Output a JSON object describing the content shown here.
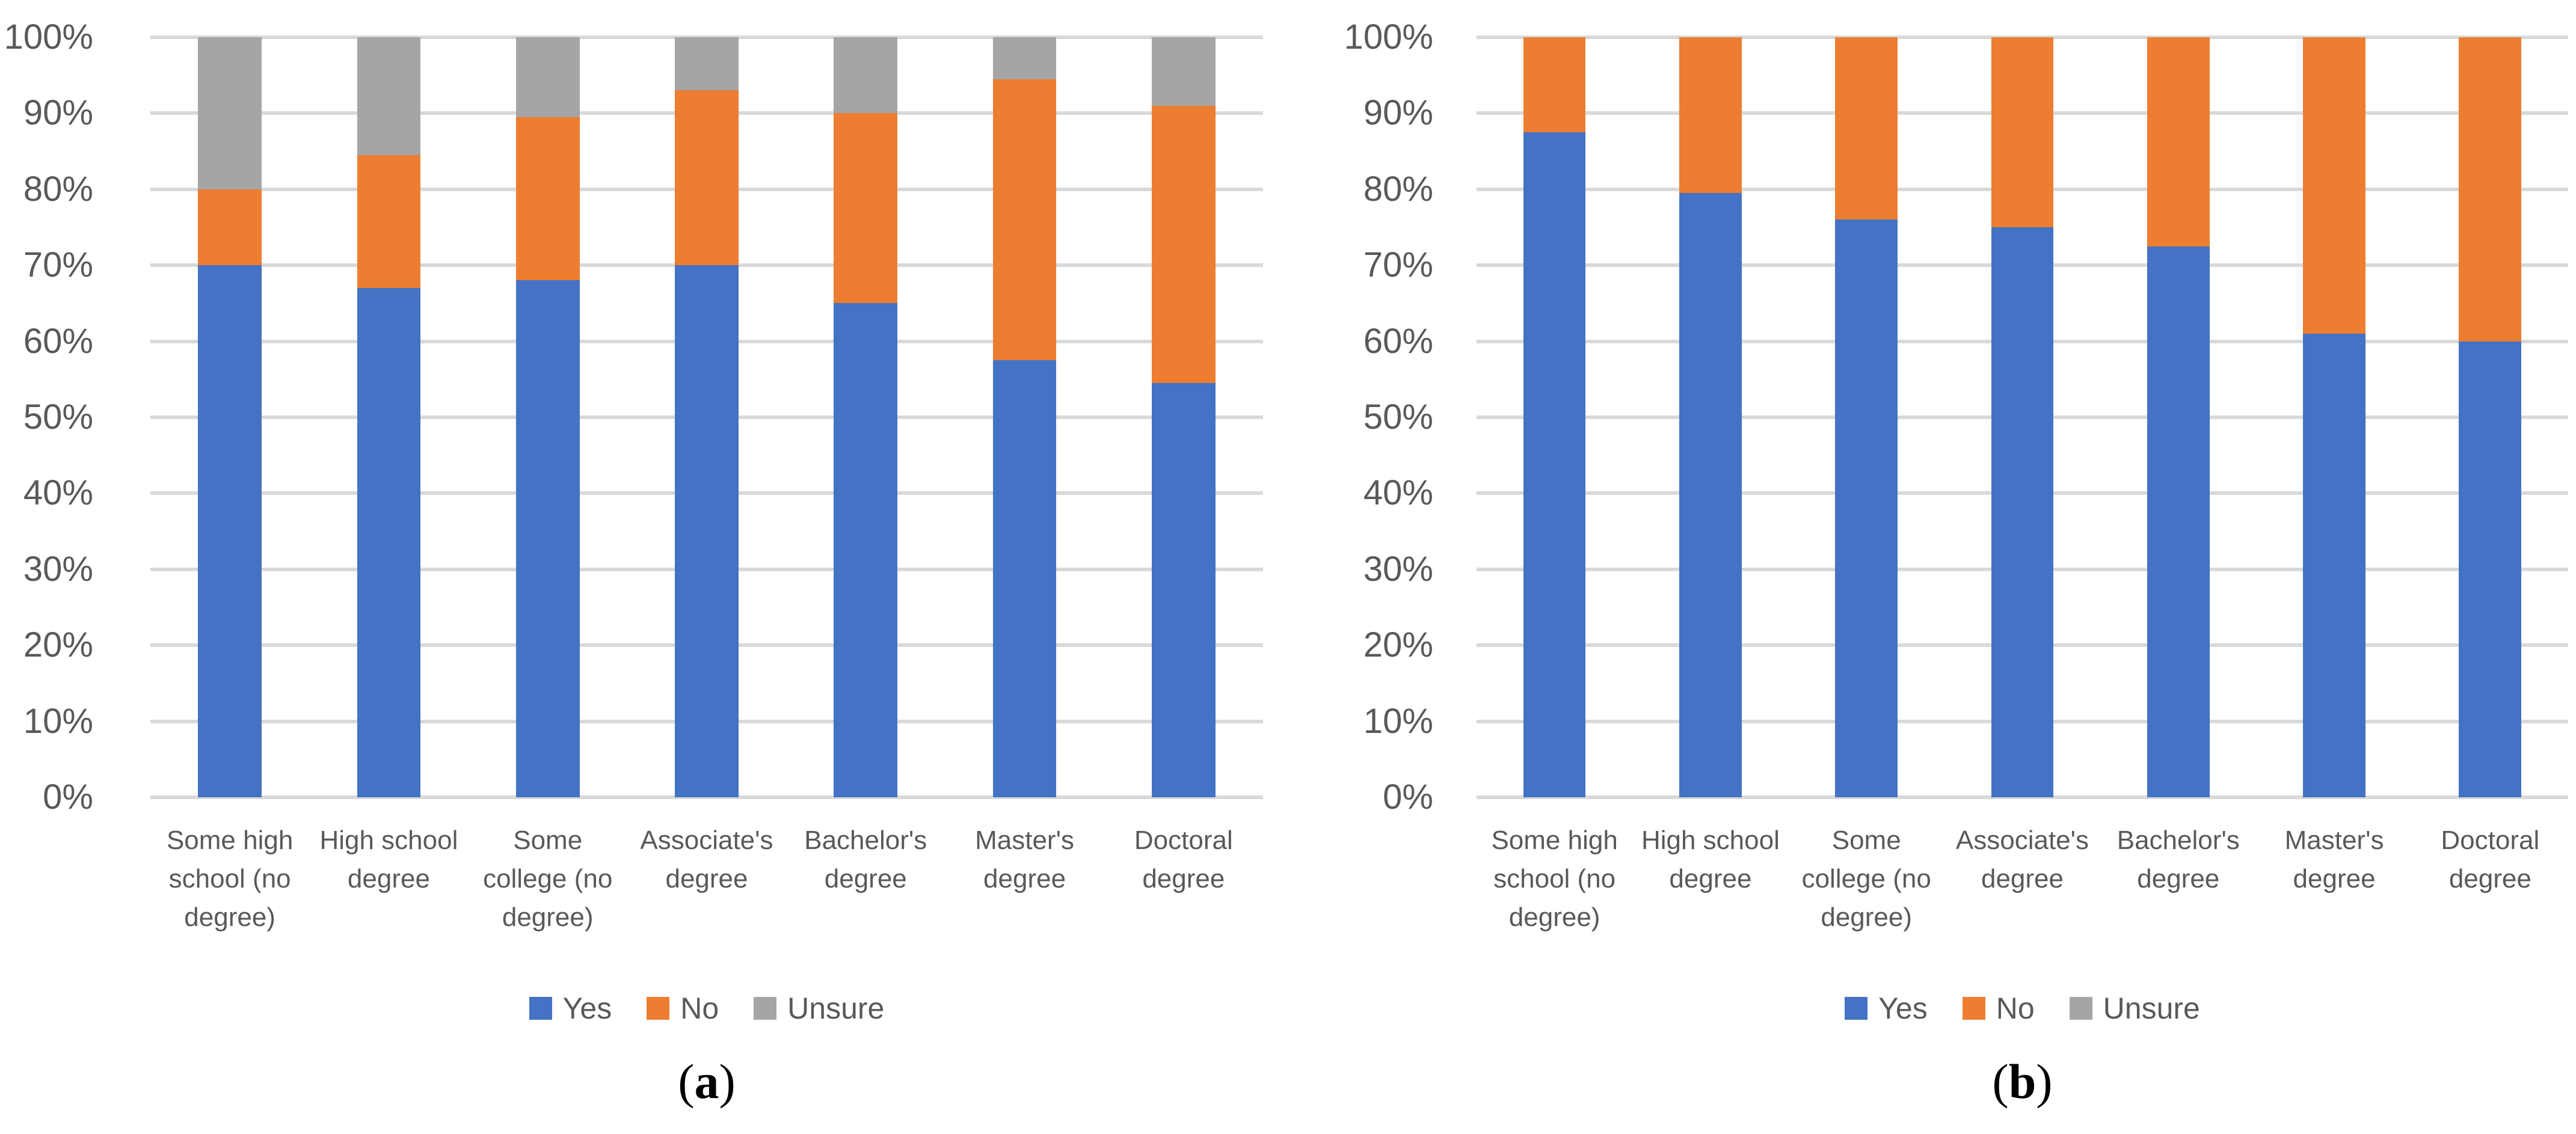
{
  "figure": {
    "background": "#ffffff"
  },
  "colors": {
    "yes": "#4472C4",
    "no": "#ED7D31",
    "unsure": "#A5A5A5",
    "gridline": "#D9D9D9",
    "axis_text": "#595959",
    "caption_text": "#000000"
  },
  "chart_data": [
    {
      "type": "bar",
      "stacked": true,
      "percent_stacked": true,
      "caption": "(a)",
      "categories": [
        "Some high school (no degree)",
        "High school degree",
        "Some college (no degree)",
        "Associate's degree",
        "Bachelor's degree",
        "Master's degree",
        "Doctoral degree"
      ],
      "series": [
        {
          "name": "Yes",
          "color_key": "yes",
          "values": [
            70,
            67,
            68,
            70,
            65,
            57.5,
            54.5
          ]
        },
        {
          "name": "No",
          "color_key": "no",
          "values": [
            10,
            17.5,
            21.5,
            23,
            25,
            37,
            36.5
          ]
        },
        {
          "name": "Unsure",
          "color_key": "unsure",
          "values": [
            20,
            15.5,
            10.5,
            7,
            10,
            5.5,
            9
          ]
        }
      ],
      "y_axis": {
        "min": 0,
        "max": 100,
        "step": 10,
        "tick_labels": [
          "0%",
          "10%",
          "20%",
          "30%",
          "40%",
          "50%",
          "60%",
          "70%",
          "80%",
          "90%",
          "100%"
        ]
      },
      "grid": true,
      "legend": {
        "position": "bottom",
        "entries": [
          "Yes",
          "No",
          "Unsure"
        ]
      }
    },
    {
      "type": "bar",
      "stacked": true,
      "percent_stacked": true,
      "caption": "(b)",
      "categories": [
        "Some high school (no degree)",
        "High school degree",
        "Some college (no degree)",
        "Associate's degree",
        "Bachelor's degree",
        "Master's degree",
        "Doctoral degree"
      ],
      "series": [
        {
          "name": "Yes",
          "color_key": "yes",
          "values": [
            87.5,
            79.5,
            76,
            75,
            72.5,
            61,
            60
          ]
        },
        {
          "name": "No",
          "color_key": "no",
          "values": [
            12.5,
            20.5,
            24,
            25,
            27.5,
            39,
            40
          ]
        },
        {
          "name": "Unsure",
          "color_key": "unsure",
          "values": [
            0,
            0,
            0,
            0,
            0,
            0,
            0
          ]
        }
      ],
      "y_axis": {
        "min": 0,
        "max": 100,
        "step": 10,
        "tick_labels": [
          "0%",
          "10%",
          "20%",
          "30%",
          "40%",
          "50%",
          "60%",
          "70%",
          "80%",
          "90%",
          "100%"
        ]
      },
      "grid": true,
      "legend": {
        "position": "bottom",
        "entries": [
          "Yes",
          "No",
          "Unsure"
        ]
      }
    }
  ]
}
